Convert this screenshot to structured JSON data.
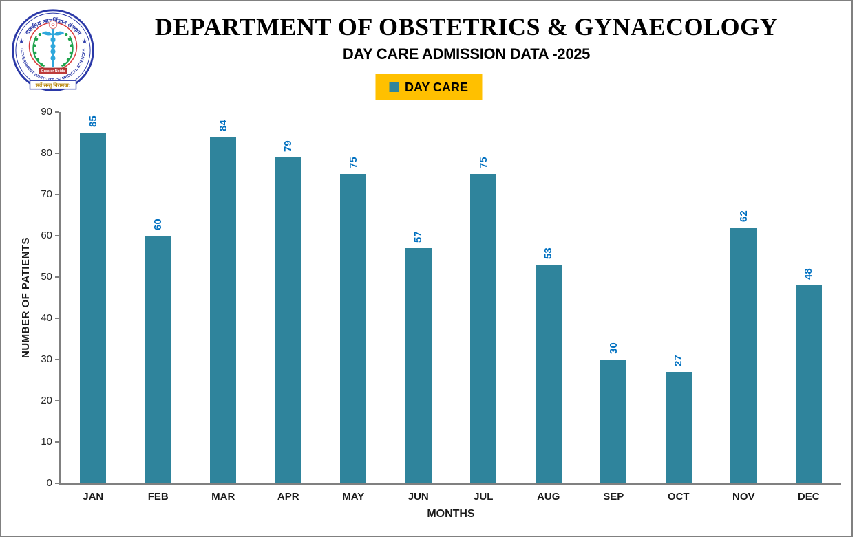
{
  "header": {
    "title": "DEPARTMENT OF OBSTETRICS & GYNAECOLOGY",
    "subtitle": "DAY CARE ADMISSION DATA -2025"
  },
  "logo": {
    "top_text": "राजकीय आयुर्विज्ञान संस्थान",
    "ring_text": "GOVERNMENT INSTITUTE OF MEDICAL SCIENCES",
    "banner_text": "Greater Noida",
    "motto_text": "सर्वे सन्तु निरामया:",
    "star": "★",
    "colors": {
      "outer_ring": "#2B39A8",
      "inner_ring": "#DA3C3C",
      "wreath": "#1FA34D",
      "caduceus": "#2FA8DC",
      "banner": "#BE3B3B",
      "motto": "#B8860B"
    }
  },
  "legend": {
    "label": "DAY CARE",
    "background": "#FFC000",
    "marker_color": "#2F849C",
    "text_color": "#000000"
  },
  "chart_data": {
    "type": "bar",
    "title": "DAY CARE ADMISSION DATA -2025",
    "series_name": "DAY CARE",
    "categories": [
      "JAN",
      "FEB",
      "MAR",
      "APR",
      "MAY",
      "JUN",
      "JUL",
      "AUG",
      "SEP",
      "OCT",
      "NOV",
      "DEC"
    ],
    "values": [
      85,
      60,
      84,
      79,
      75,
      57,
      75,
      53,
      30,
      27,
      62,
      48
    ],
    "xlabel": "MONTHS",
    "ylabel": "NUMBER OF PATIENTS",
    "ylim": [
      0,
      90
    ],
    "yticks": [
      0,
      10,
      20,
      30,
      40,
      50,
      60,
      70,
      80,
      90
    ],
    "grid": false,
    "legend_position": "top",
    "bar_color": "#2F849C",
    "data_label_color": "#0070C0",
    "axis_color": "#808080",
    "data_labels_rotated": true
  }
}
